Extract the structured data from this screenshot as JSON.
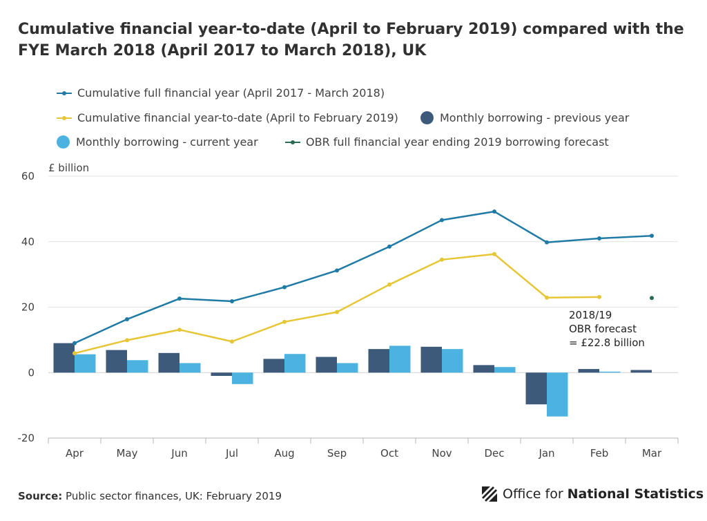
{
  "chart_data": {
    "type": "bar",
    "title": "Cumulative financial year-to-date (April to February 2019) compared with the FYE March 2018 (April 2017 to March 2018), UK",
    "ylabel": "£ billion",
    "ylim": [
      -20,
      60
    ],
    "yticks": [
      -20,
      0,
      20,
      40,
      60
    ],
    "categories": [
      "Apr",
      "May",
      "Jun",
      "Jul",
      "Aug",
      "Sep",
      "Oct",
      "Nov",
      "Dec",
      "Jan",
      "Feb",
      "Mar"
    ],
    "bar_series": [
      {
        "name": "Monthly borrowing - previous year",
        "color": "#3d5a7a",
        "values": [
          9.0,
          6.9,
          6.0,
          -1.0,
          4.2,
          4.8,
          7.2,
          7.9,
          2.3,
          -9.7,
          1.1,
          0.8
        ]
      },
      {
        "name": "Monthly borrowing - current year",
        "color": "#4cb3e0",
        "values": [
          5.6,
          3.8,
          2.9,
          -3.5,
          5.7,
          2.9,
          8.2,
          7.2,
          1.7,
          -13.4,
          0.3,
          null
        ]
      }
    ],
    "line_series": [
      {
        "name": "Cumulative full financial year (April 2017 - March 2018)",
        "color": "#1f7ba6",
        "values": [
          9.0,
          16.3,
          22.6,
          21.8,
          26.1,
          31.2,
          38.5,
          46.6,
          49.2,
          39.8,
          41.0,
          41.8
        ]
      },
      {
        "name": "Cumulative financial year-to-date (April to February 2019)",
        "color": "#e6c634",
        "values": [
          5.9,
          9.9,
          13.1,
          9.5,
          15.5,
          18.5,
          26.9,
          34.5,
          36.2,
          22.9,
          23.1,
          null
        ]
      }
    ],
    "forecast": {
      "name": "OBR full financial year ending 2019 borrowing forecast",
      "color": "#2a6b53",
      "category": "Mar",
      "value": 22.8
    },
    "annotation": {
      "lines": [
        "2018/19",
        "OBR forecast",
        "= £22.8 billion"
      ]
    }
  },
  "source": {
    "label": "Source:",
    "text": "Public sector finances, UK: February 2019"
  },
  "logo": {
    "text": "Office for",
    "bold": "National Statistics"
  }
}
